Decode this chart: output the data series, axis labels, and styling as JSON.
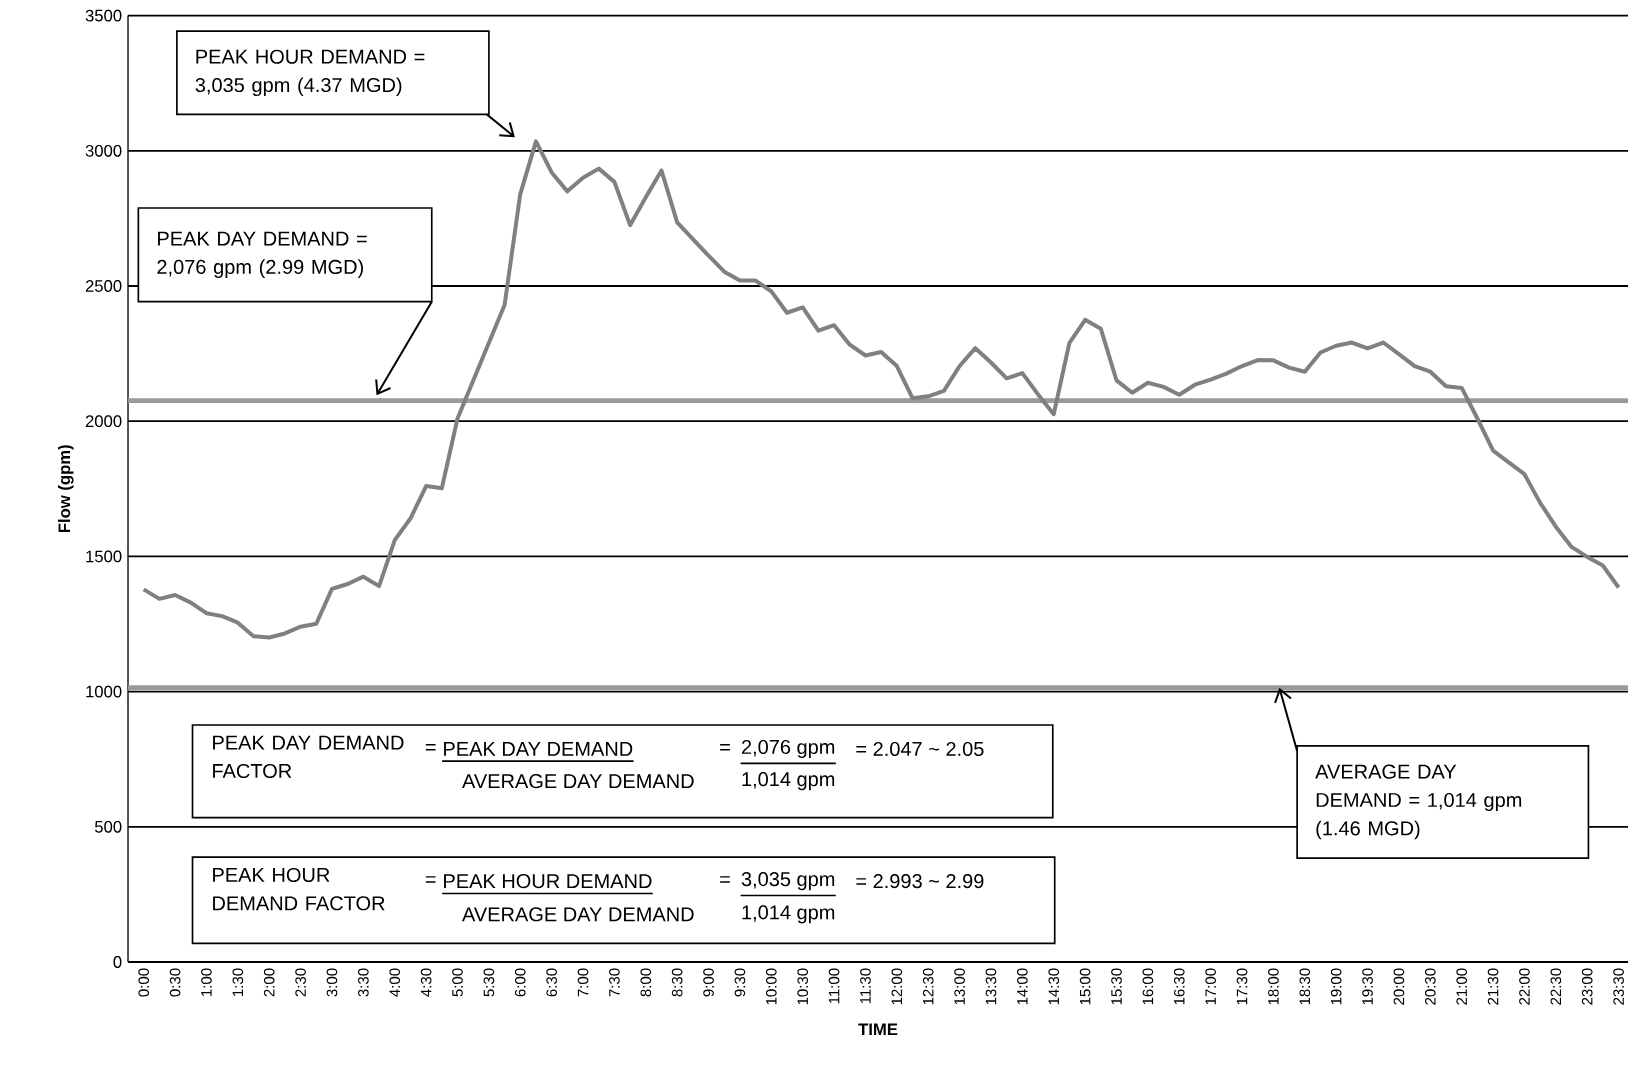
{
  "chart_data": {
    "type": "line",
    "xlabel": "TIME",
    "ylabel": "Flow (gpm)",
    "grid": "y",
    "xlim": [
      -0.25,
      23.65
    ],
    "ylim": [
      0,
      3500
    ],
    "yticks": [
      0,
      500,
      1000,
      1500,
      2000,
      2500,
      3000,
      3500
    ],
    "xticks": [
      {
        "value": 0,
        "label": "0:00"
      },
      {
        "value": 0.5,
        "label": "0:30"
      },
      {
        "value": 1,
        "label": "1:00"
      },
      {
        "value": 1.5,
        "label": "1:30"
      },
      {
        "value": 2,
        "label": "2:00"
      },
      {
        "value": 2.5,
        "label": "2:30"
      },
      {
        "value": 3,
        "label": "3:00"
      },
      {
        "value": 3.5,
        "label": "3:30"
      },
      {
        "value": 4,
        "label": "4:00"
      },
      {
        "value": 4.5,
        "label": "4:30"
      },
      {
        "value": 5,
        "label": "5:00"
      },
      {
        "value": 5.5,
        "label": "5:30"
      },
      {
        "value": 6,
        "label": "6:00"
      },
      {
        "value": 6.5,
        "label": "6:30"
      },
      {
        "value": 7,
        "label": "7:00"
      },
      {
        "value": 7.5,
        "label": "7:30"
      },
      {
        "value": 8,
        "label": "8:00"
      },
      {
        "value": 8.5,
        "label": "8:30"
      },
      {
        "value": 9,
        "label": "9:00"
      },
      {
        "value": 9.5,
        "label": "9:30"
      },
      {
        "value": 10,
        "label": "10:00"
      },
      {
        "value": 10.5,
        "label": "10:30"
      },
      {
        "value": 11,
        "label": "11:00"
      },
      {
        "value": 11.5,
        "label": "11:30"
      },
      {
        "value": 12,
        "label": "12:00"
      },
      {
        "value": 12.5,
        "label": "12:30"
      },
      {
        "value": 13,
        "label": "13:00"
      },
      {
        "value": 13.5,
        "label": "13:30"
      },
      {
        "value": 14,
        "label": "14:00"
      },
      {
        "value": 14.5,
        "label": "14:30"
      },
      {
        "value": 15,
        "label": "15:00"
      },
      {
        "value": 15.5,
        "label": "15:30"
      },
      {
        "value": 16,
        "label": "16:00"
      },
      {
        "value": 16.5,
        "label": "16:30"
      },
      {
        "value": 17,
        "label": "17:00"
      },
      {
        "value": 17.5,
        "label": "17:30"
      },
      {
        "value": 18,
        "label": "18:00"
      },
      {
        "value": 18.5,
        "label": "18:30"
      },
      {
        "value": 19,
        "label": "19:00"
      },
      {
        "value": 19.5,
        "label": "19:30"
      },
      {
        "value": 20,
        "label": "20:00"
      },
      {
        "value": 20.5,
        "label": "20:30"
      },
      {
        "value": 21,
        "label": "21:00"
      },
      {
        "value": 21.5,
        "label": "21:30"
      },
      {
        "value": 22,
        "label": "22:00"
      },
      {
        "value": 22.5,
        "label": "22:30"
      },
      {
        "value": 23,
        "label": "23:00"
      },
      {
        "value": 23.5,
        "label": "23:30"
      }
    ],
    "x": [
      0,
      0.25,
      0.5,
      0.75,
      1,
      1.25,
      1.5,
      1.75,
      2,
      2.25,
      2.5,
      2.75,
      3,
      3.25,
      3.5,
      3.75,
      4,
      4.25,
      4.5,
      4.75,
      5,
      5.25,
      5.5,
      5.75,
      6,
      6.25,
      6.5,
      6.75,
      7,
      7.25,
      7.5,
      7.75,
      8,
      8.25,
      8.5,
      8.75,
      9,
      9.25,
      9.5,
      9.75,
      10,
      10.25,
      10.5,
      10.75,
      11,
      11.25,
      11.5,
      11.75,
      12,
      12.25,
      12.5,
      12.75,
      13,
      13.25,
      13.5,
      13.75,
      14,
      14.25,
      14.5,
      14.75,
      15,
      15.25,
      15.5,
      15.75,
      16,
      16.25,
      16.5,
      16.75,
      17,
      17.25,
      17.5,
      17.75,
      18,
      18.25,
      18.5,
      18.75,
      19,
      19.25,
      19.5,
      19.75,
      20,
      20.25,
      20.5,
      20.75,
      21,
      21.25,
      21.5,
      21.75,
      22,
      22.25,
      22.5,
      22.75,
      23,
      23.25,
      23.5
    ],
    "series": [
      {
        "color": "#808080",
        "values": [
          1378,
          1343,
          1357,
          1329,
          1290,
          1279,
          1255,
          1205,
          1200,
          1215,
          1240,
          1251,
          1380,
          1398,
          1425,
          1390,
          1560,
          1640,
          1760,
          1752,
          2010,
          2150,
          2290,
          2430,
          2840,
          3035,
          2920,
          2850,
          2900,
          2934,
          2885,
          2725,
          2828,
          2927,
          2735,
          2673,
          2612,
          2553,
          2520,
          2520,
          2480,
          2401,
          2421,
          2335,
          2355,
          2283,
          2243,
          2256,
          2204,
          2085,
          2092,
          2112,
          2204,
          2270,
          2217,
          2158,
          2178,
          2099,
          2026,
          2290,
          2375,
          2342,
          2151,
          2105,
          2142,
          2127,
          2098,
          2135,
          2154,
          2176,
          2204,
          2226,
          2225,
          2198,
          2183,
          2254,
          2279,
          2291,
          2269,
          2291,
          2248,
          2204,
          2183,
          2129,
          2123,
          2010,
          1891,
          1848,
          1804,
          1698,
          1610,
          1535,
          1498,
          1466,
          1385
        ]
      }
    ],
    "ref_lines": [
      {
        "axis": "y",
        "value": 2076,
        "color": "#9a9a9a"
      },
      {
        "axis": "y",
        "value": 1014,
        "label": "AVERAGE DAY DEMAND = 1,014 gpm (1.46 MGD)",
        "color": "#9a9a9a"
      }
    ],
    "annotations": [
      "PEAK HOUR DEMAND = 3,035 gpm (4.37 MGD)",
      "PEAK DAY DEMAND = 2,076 gpm (2.99 MGD)",
      "PEAK DAY DEMAND FACTOR",
      "=",
      "PEAK DAY DEMAND",
      "AVERAGE DAY DEMAND",
      "=",
      "2,076 gpm",
      "1,014 gpm",
      "= 2.047 ~ 2.05",
      "PEAK HOUR DEMAND FACTOR",
      "=",
      "PEAK HOUR DEMAND",
      "AVERAGE DAY DEMAND",
      "=",
      "3,035 gpm",
      "1,014 gpm",
      "= 2.993 ~ 2.99"
    ]
  }
}
